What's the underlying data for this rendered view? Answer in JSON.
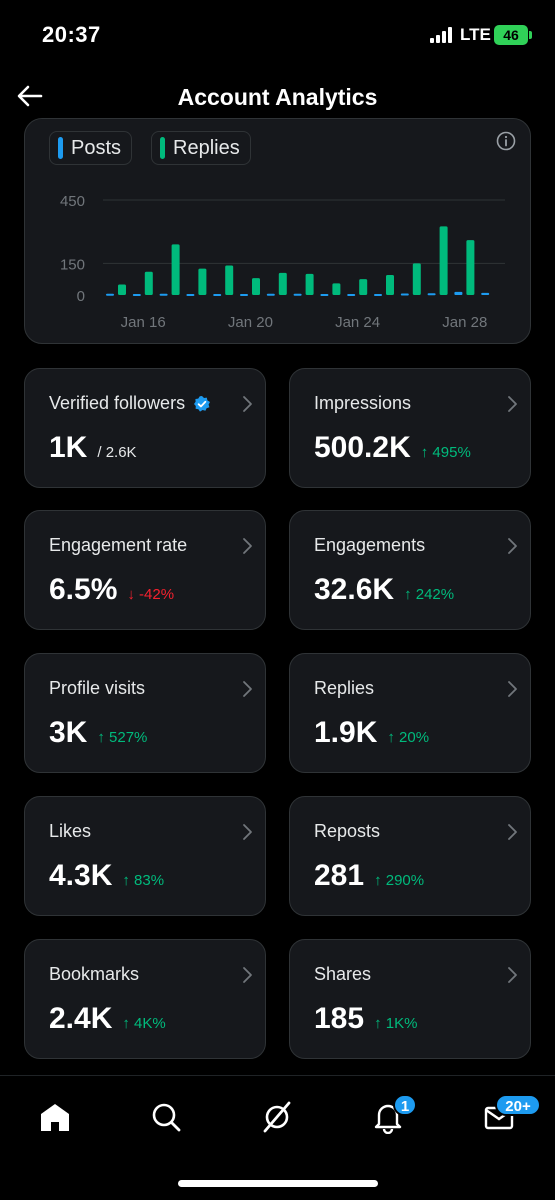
{
  "status": {
    "time": "20:37",
    "network": "LTE",
    "battery": "46"
  },
  "header": {
    "title": "Account Analytics",
    "back_icon": "arrow-left-icon"
  },
  "chart": {
    "legend": [
      {
        "label": "Posts",
        "color": "#1d9bf0"
      },
      {
        "label": "Replies",
        "color": "#00ba7c"
      }
    ]
  },
  "chart_data": {
    "type": "bar",
    "categories": [
      "Jan 15",
      "Jan 16",
      "Jan 17",
      "Jan 18",
      "Jan 19",
      "Jan 20",
      "Jan 21",
      "Jan 22",
      "Jan 23",
      "Jan 24",
      "Jan 25",
      "Jan 26",
      "Jan 27",
      "Jan 28",
      "Jan 29"
    ],
    "x_tick_labels": [
      "Jan 16",
      "Jan 20",
      "Jan 24",
      "Jan 28"
    ],
    "y_tick_labels": [
      "450",
      "150",
      "0"
    ],
    "ylim": [
      0,
      450
    ],
    "grid": true,
    "series": [
      {
        "name": "Posts",
        "values": [
          6,
          5,
          6,
          5,
          5,
          5,
          6,
          6,
          5,
          5,
          5,
          7,
          8,
          15,
          10
        ]
      },
      {
        "name": "Replies",
        "values": [
          50,
          110,
          240,
          125,
          140,
          80,
          105,
          100,
          55,
          75,
          95,
          150,
          325,
          260,
          0
        ]
      }
    ]
  },
  "metrics": [
    {
      "label": "Verified followers",
      "value": "1K",
      "sub": "/ 2.6K",
      "change": "",
      "direction": "none",
      "verified": true
    },
    {
      "label": "Impressions",
      "value": "500.2K",
      "sub": "",
      "change": "↑ 495%",
      "direction": "up"
    },
    {
      "label": "Engagement rate",
      "value": "6.5%",
      "sub": "",
      "change": "↓ -42%",
      "direction": "down"
    },
    {
      "label": "Engagements",
      "value": "32.6K",
      "sub": "",
      "change": "↑ 242%",
      "direction": "up"
    },
    {
      "label": "Profile visits",
      "value": "3K",
      "sub": "",
      "change": "↑ 527%",
      "direction": "up"
    },
    {
      "label": "Replies",
      "value": "1.9K",
      "sub": "",
      "change": "↑ 20%",
      "direction": "up"
    },
    {
      "label": "Likes",
      "value": "4.3K",
      "sub": "",
      "change": "↑ 83%",
      "direction": "up"
    },
    {
      "label": "Reposts",
      "value": "281",
      "sub": "",
      "change": "↑ 290%",
      "direction": "up"
    },
    {
      "label": "Bookmarks",
      "value": "2.4K",
      "sub": "",
      "change": "↑ 4K%",
      "direction": "up"
    },
    {
      "label": "Shares",
      "value": "185",
      "sub": "",
      "change": "↑ 1K%",
      "direction": "up"
    }
  ],
  "nav": {
    "items": [
      "home-icon",
      "search-icon",
      "grok-icon",
      "bell-icon",
      "mail-icon"
    ],
    "notifications_badge": "1",
    "messages_badge": "20+"
  },
  "colors": {
    "accent": "#1d9bf0",
    "positive": "#00ba7c",
    "negative": "#f4212e",
    "card": "#16181c",
    "border": "#2f3336"
  }
}
